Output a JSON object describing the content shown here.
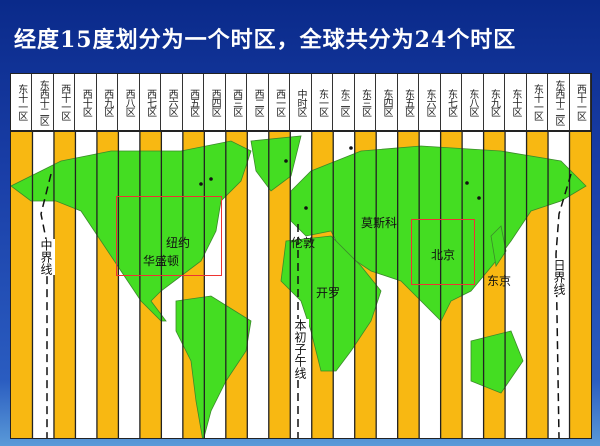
{
  "title": "经度15度划分为一个时区，全球共分为24个时区",
  "zones": [
    "东十一区",
    "东西十二区",
    "西十一区",
    "西十区",
    "西九区",
    "西八区",
    "西七区",
    "西六区",
    "西五区",
    "西四区",
    "西三区",
    "西二区",
    "西一区",
    "中时区",
    "东一区",
    "东二区",
    "东三区",
    "东四区",
    "东五区",
    "东六区",
    "东七区",
    "东八区",
    "东九区",
    "东十区",
    "东十一区",
    "东西十二区",
    "西十一区"
  ],
  "cities": {
    "newyork": "纽约",
    "washington": "华盛顿",
    "london": "伦敦",
    "moscow": "莫斯科",
    "beijing": "北京",
    "cairo": "开罗",
    "tokyo": "东京"
  },
  "lines": {
    "left_date_line": "中界线",
    "right_date_line": "日界线",
    "prime_meridian": "本初子午线"
  },
  "colors": {
    "land": "#44dd22",
    "stripe": "#f8b812",
    "background": "#1a3fa8",
    "highlight_box": "#ee3333"
  }
}
